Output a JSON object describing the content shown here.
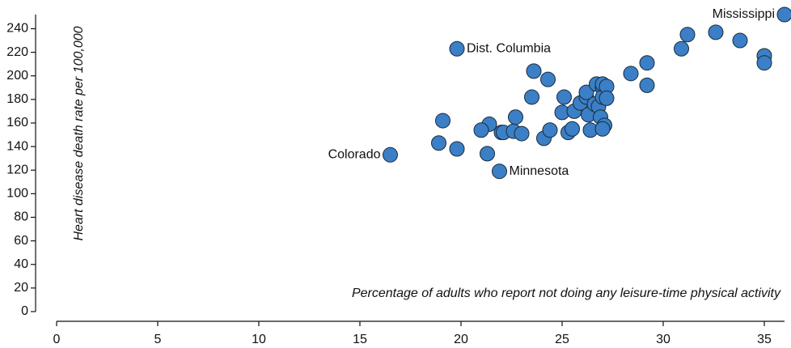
{
  "chart_data": {
    "type": "scatter",
    "x_label": "Percentage of adults who report not doing any leisure-time physical activity",
    "y_label": "Heart disease death rate per 100,000",
    "xlim": [
      0,
      36
    ],
    "ylim": [
      0,
      252
    ],
    "xticks": [
      0,
      5,
      10,
      15,
      20,
      25,
      30,
      35
    ],
    "yticks": [
      0,
      20,
      40,
      60,
      80,
      100,
      120,
      140,
      160,
      180,
      200,
      220,
      240
    ],
    "series": [
      {
        "color": "#3b7fc6",
        "x": [
          16.5,
          21.9,
          19.8,
          36.0,
          19.1,
          18.9,
          19.8,
          21.4,
          21.0,
          21.3,
          22.0,
          22.1,
          22.6,
          22.7,
          23.0,
          23.5,
          23.6,
          24.3,
          24.1,
          24.4,
          25.1,
          25.0,
          25.3,
          25.5,
          25.6,
          25.9,
          26.2,
          26.2,
          26.3,
          26.4,
          26.6,
          26.7,
          26.8,
          26.9,
          27.0,
          27.0,
          27.0,
          27.1,
          27.0,
          27.2,
          27.2,
          28.4,
          29.2,
          29.2,
          30.9,
          31.2,
          32.6,
          33.8,
          35.0,
          35.0
        ],
        "values": [
          133,
          119,
          223,
          252,
          162,
          143,
          138,
          159,
          154,
          134,
          152,
          152,
          153,
          165,
          151,
          182,
          204,
          197,
          147,
          154,
          182,
          169,
          152,
          155,
          170,
          177,
          182,
          186,
          167,
          154,
          176,
          193,
          174,
          165,
          190,
          182,
          193,
          158,
          155,
          191,
          181,
          202,
          192,
          211,
          223,
          235,
          237,
          230,
          217,
          211
        ],
        "point_labels": [
          "Colorado",
          "Minnesota",
          "Dist. Columbia",
          "Mississippi",
          null,
          null,
          null,
          null,
          null,
          null,
          null,
          null,
          null,
          null,
          null,
          null,
          null,
          null,
          null,
          null,
          null,
          null,
          null,
          null,
          null,
          null,
          null,
          null,
          null,
          null,
          null,
          null,
          null,
          null,
          null,
          null,
          null,
          null,
          null,
          null,
          null,
          null,
          null,
          null,
          null,
          null,
          null,
          null,
          null,
          null
        ]
      }
    ]
  }
}
